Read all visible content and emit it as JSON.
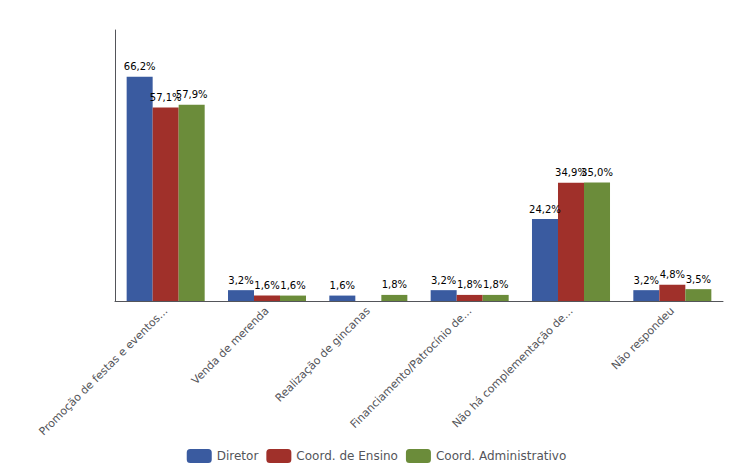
{
  "chart_data": {
    "type": "bar",
    "categories": [
      "Promoção de festas e eventos...",
      "Venda de merenda",
      "Realização de gincanas",
      "Financiamento/Patrocínio de...",
      "Não há complementação de...",
      "Não respondeu"
    ],
    "series": [
      {
        "name": "Diretor",
        "color": "#3A5BA0",
        "values": [
          66.2,
          3.2,
          1.6,
          3.2,
          24.2,
          3.2
        ],
        "value_labels": [
          "66,2%",
          "3,2%",
          "1,6%",
          "3,2%",
          "24,2%",
          "3,2%"
        ]
      },
      {
        "name": "Coord. de Ensino",
        "color": "#A0302A",
        "values": [
          57.1,
          1.6,
          0.0,
          1.8,
          34.9,
          4.8
        ],
        "value_labels": [
          "57,1%",
          "1,6%",
          null,
          "1,8%",
          "34,9%",
          "4,8%"
        ]
      },
      {
        "name": "Coord. Administrativo",
        "color": "#6B8C3A",
        "values": [
          57.9,
          1.6,
          1.8,
          1.8,
          35.0,
          3.5
        ],
        "value_labels": [
          "57,9%",
          "1,6%",
          "1,8%",
          "1,8%",
          "35,0%",
          "3,5%"
        ]
      }
    ],
    "ylim": [
      0,
      80
    ],
    "grid": false,
    "legend": "bottom",
    "data_labels": true,
    "tick_labels": "x"
  }
}
